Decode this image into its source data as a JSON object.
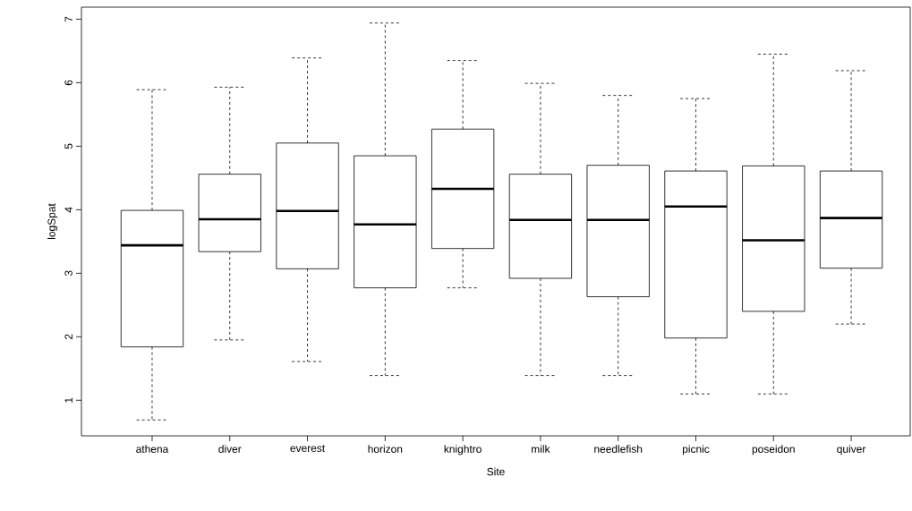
{
  "chart_data": {
    "type": "box",
    "xlabel": "Site",
    "ylabel": "logSpat",
    "categories": [
      "athena",
      "diver",
      "everest",
      "horizon",
      "knightro",
      "milk",
      "needlefish",
      "picnic",
      "poseidon",
      "quiver"
    ],
    "boxes": [
      {
        "low": 0.69,
        "q1": 1.84,
        "median": 3.44,
        "q3": 3.99,
        "high": 5.89
      },
      {
        "low": 1.95,
        "q1": 3.34,
        "median": 3.85,
        "q3": 4.56,
        "high": 5.93
      },
      {
        "low": 1.61,
        "q1": 3.07,
        "median": 3.98,
        "q3": 5.05,
        "high": 6.39
      },
      {
        "low": 1.39,
        "q1": 2.77,
        "median": 3.77,
        "q3": 4.85,
        "high": 6.94
      },
      {
        "low": 2.77,
        "q1": 3.39,
        "median": 4.33,
        "q3": 5.27,
        "high": 6.35
      },
      {
        "low": 1.39,
        "q1": 2.92,
        "median": 3.84,
        "q3": 4.56,
        "high": 5.99
      },
      {
        "low": 1.39,
        "q1": 2.63,
        "median": 3.84,
        "q3": 4.7,
        "high": 5.8
      },
      {
        "low": 1.1,
        "q1": 1.98,
        "median": 4.05,
        "q3": 4.61,
        "high": 5.75
      },
      {
        "low": 1.1,
        "q1": 2.4,
        "median": 3.52,
        "q3": 4.69,
        "high": 6.45
      },
      {
        "low": 2.2,
        "q1": 3.08,
        "median": 3.87,
        "q3": 4.61,
        "high": 6.19
      }
    ],
    "ylim": [
      0.44,
      7.19
    ],
    "yticks": [
      1,
      2,
      3,
      4,
      5,
      6,
      7
    ]
  }
}
